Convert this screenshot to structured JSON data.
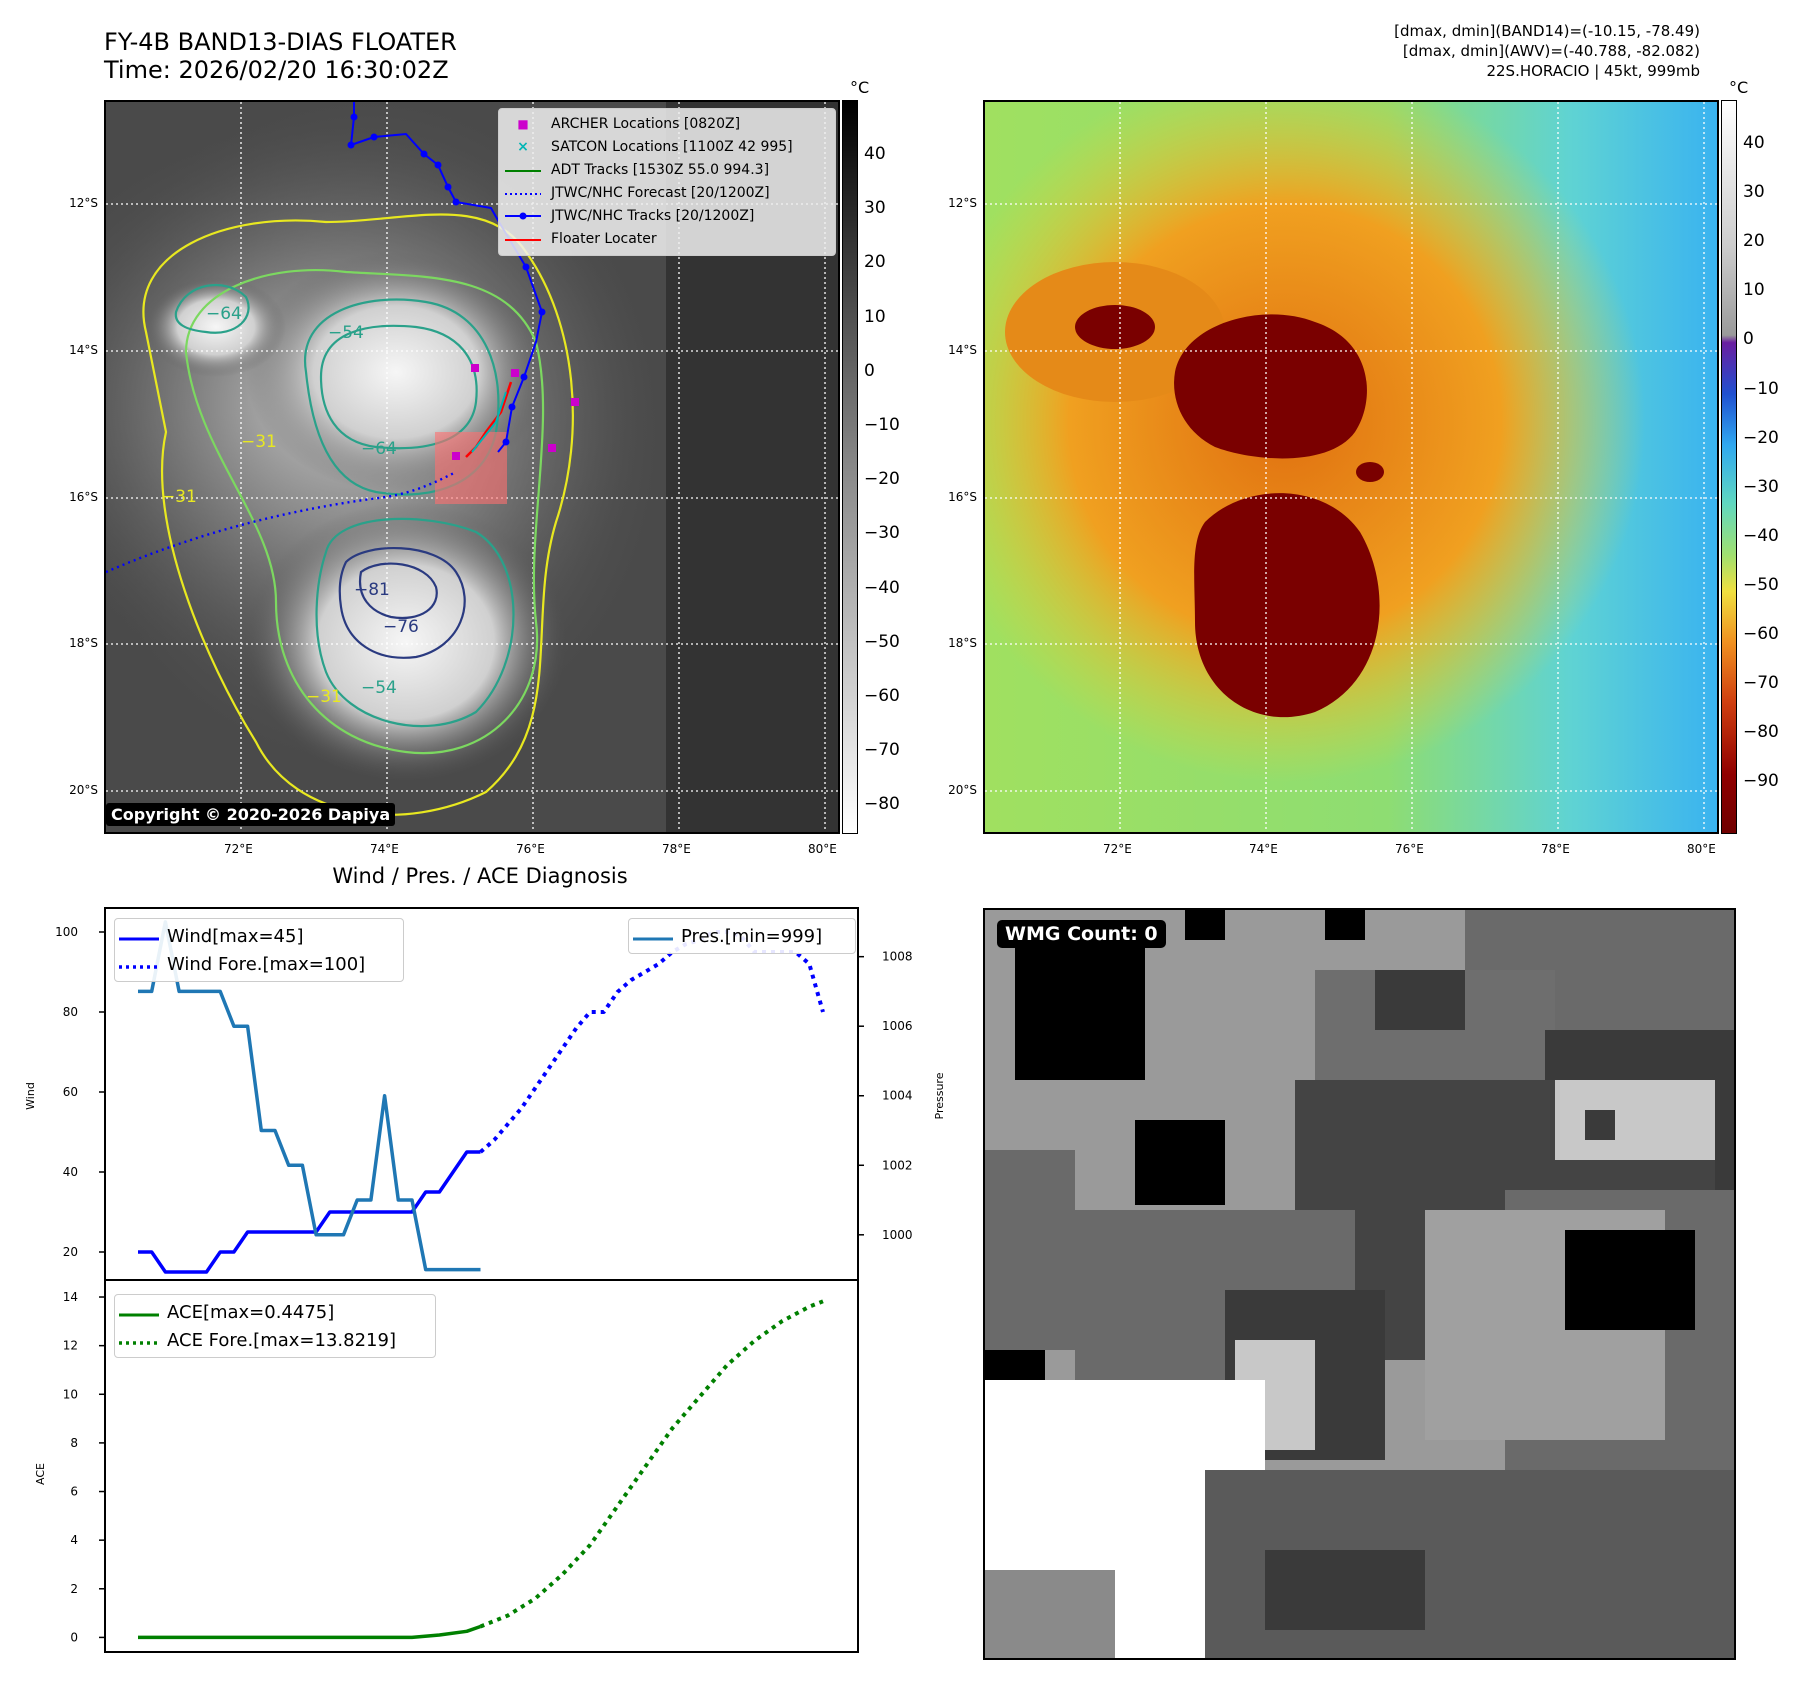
{
  "header": {
    "title_line1": "FY-4B BAND13-DIAS FLOATER",
    "title_line2": "Time: 2026/02/20 16:30:02Z",
    "info_line1": "[dmax, dmin](BAND14)=(-10.15, -78.49)",
    "info_line2": "[dmax, dmin](AWV)=(-40.788, -82.082)",
    "info_line3": "22S.HORACIO | 45kt, 999mb"
  },
  "map_panels": {
    "lat_labels": [
      "12°S",
      "14°S",
      "16°S",
      "18°S",
      "20°S"
    ],
    "lon_labels": [
      "72°E",
      "74°E",
      "76°E",
      "78°E",
      "80°E"
    ],
    "contour_labels": [
      "−31",
      "−64",
      "−54",
      "−31",
      "−64",
      "−81",
      "−76",
      "−54",
      "−31"
    ],
    "copyright": "Copyright © 2020-2026 Dapiya"
  },
  "colorbar_gray": {
    "unit": "°C",
    "ticks": [
      "40",
      "30",
      "20",
      "10",
      "0",
      "−10",
      "−20",
      "−30",
      "−40",
      "−50",
      "−60",
      "−70",
      "−80"
    ]
  },
  "colorbar_color": {
    "unit": "°C",
    "ticks": [
      "40",
      "30",
      "20",
      "10",
      "0",
      "−10",
      "−20",
      "−30",
      "−40",
      "−50",
      "−60",
      "−70",
      "−80",
      "−90"
    ]
  },
  "legend_track": {
    "items": [
      {
        "label": "ARCHER Locations [0820Z]",
        "color": "#cc00cc",
        "marker": "■"
      },
      {
        "label": "SATCON Locations [1100Z 42 995]",
        "color": "#00b5b5",
        "marker": "×"
      },
      {
        "label": "ADT Tracks [1530Z 55.0 994.3]",
        "color": "#008000",
        "marker": ""
      },
      {
        "label": "JTWC/NHC Forecast [20/1200Z]",
        "color": "#0000ff",
        "marker": ""
      },
      {
        "label": "JTWC/NHC Tracks [20/1200Z]",
        "color": "#0000ff",
        "marker": "●"
      },
      {
        "label": "Floater Locater",
        "color": "#ff0000",
        "marker": ""
      }
    ]
  },
  "diagnosis": {
    "title": "Wind / Pres. / ACE Diagnosis",
    "wind_ylabel": "Wind",
    "pres_ylabel": "Pressure",
    "ace_ylabel": "ACE",
    "legend_wind": "Wind[max=45]",
    "legend_wind_fore": "Wind Fore.[max=100]",
    "legend_pres": "Pres.[min=999]",
    "legend_ace": "ACE[max=0.4475]",
    "legend_ace_fore": "ACE Fore.[max=13.8219]"
  },
  "wmg": {
    "label": "WMG Count: 0"
  },
  "chart_data": [
    {
      "type": "line",
      "title": "Wind / Pres. / ACE Diagnosis",
      "ylabel": "Wind",
      "ylim": [
        13,
        106
      ],
      "yticks": [
        20,
        40,
        60,
        80,
        100
      ],
      "x": [
        0,
        1,
        2,
        3,
        4,
        5,
        6,
        7,
        8,
        9,
        10,
        11,
        12,
        13,
        14,
        15,
        16,
        17,
        18,
        19,
        20,
        21,
        22,
        23,
        24,
        25,
        26,
        27,
        28,
        29,
        30,
        31,
        32,
        33,
        34,
        35,
        36,
        37,
        38,
        39,
        40,
        41,
        42,
        43,
        44,
        45,
        46,
        47,
        48,
        49,
        50
      ],
      "series": [
        {
          "name": "Wind[max=45]",
          "color": "#0000ff",
          "style": "solid",
          "x": [
            0,
            1,
            2,
            3,
            4,
            5,
            6,
            7,
            8,
            9,
            10,
            11,
            12,
            13,
            14,
            15,
            16,
            17,
            18,
            19,
            20,
            21,
            22,
            23,
            24,
            25
          ],
          "values": [
            20,
            20,
            15,
            15,
            15,
            15,
            20,
            20,
            25,
            25,
            25,
            25,
            25,
            25,
            30,
            30,
            30,
            30,
            30,
            30,
            30,
            35,
            35,
            40,
            45,
            45
          ]
        },
        {
          "name": "Wind Fore.[max=100]",
          "color": "#0000ff",
          "style": "dotted",
          "x": [
            25,
            26,
            27,
            28,
            29,
            30,
            31,
            32,
            33,
            34,
            35,
            36,
            37,
            38,
            39,
            40,
            41,
            42,
            43,
            44,
            45,
            46,
            47,
            48,
            49,
            50
          ],
          "values": [
            45,
            48,
            52,
            56,
            61,
            66,
            71,
            76,
            80,
            80,
            85,
            88,
            90,
            92,
            95,
            97,
            98,
            100,
            100,
            99,
            95,
            95,
            95,
            95,
            92,
            80
          ]
        }
      ]
    },
    {
      "type": "line",
      "ylabel": "Pressure",
      "ylim": [
        998.7,
        1009.4
      ],
      "yticks": [
        1000,
        1002,
        1004,
        1006,
        1008
      ],
      "series": [
        {
          "name": "Pres.[min=999]",
          "color": "#1f77b4",
          "style": "solid",
          "x": [
            0,
            1,
            2,
            3,
            4,
            5,
            6,
            7,
            8,
            9,
            10,
            11,
            12,
            13,
            14,
            15,
            16,
            17,
            18,
            19,
            20,
            21,
            22,
            23,
            24,
            25
          ],
          "values": [
            1007,
            1007,
            1009,
            1007,
            1007,
            1007,
            1007,
            1006,
            1006,
            1003,
            1003,
            1002,
            1002,
            1000,
            1000,
            1000,
            1001,
            1001,
            1004,
            1001,
            1001,
            999,
            999,
            999,
            999,
            999
          ]
        }
      ]
    },
    {
      "type": "line",
      "ylabel": "ACE",
      "ylim": [
        -0.6,
        14.7
      ],
      "yticks": [
        0,
        2,
        4,
        6,
        8,
        10,
        12,
        14
      ],
      "series": [
        {
          "name": "ACE[max=0.4475]",
          "color": "#008000",
          "style": "solid",
          "x": [
            0,
            4,
            8,
            12,
            16,
            20,
            22,
            24,
            25
          ],
          "values": [
            0,
            0,
            0,
            0,
            0,
            0,
            0.1,
            0.25,
            0.4475
          ]
        },
        {
          "name": "ACE Fore.[max=13.8219]",
          "color": "#008000",
          "style": "dotted",
          "x": [
            25,
            27,
            29,
            31,
            33,
            35,
            37,
            39,
            41,
            43,
            45,
            47,
            49,
            50
          ],
          "values": [
            0.4475,
            0.9,
            1.6,
            2.6,
            3.8,
            5.4,
            7.0,
            8.6,
            9.9,
            11.2,
            12.2,
            13.0,
            13.6,
            13.8219
          ]
        }
      ]
    }
  ]
}
